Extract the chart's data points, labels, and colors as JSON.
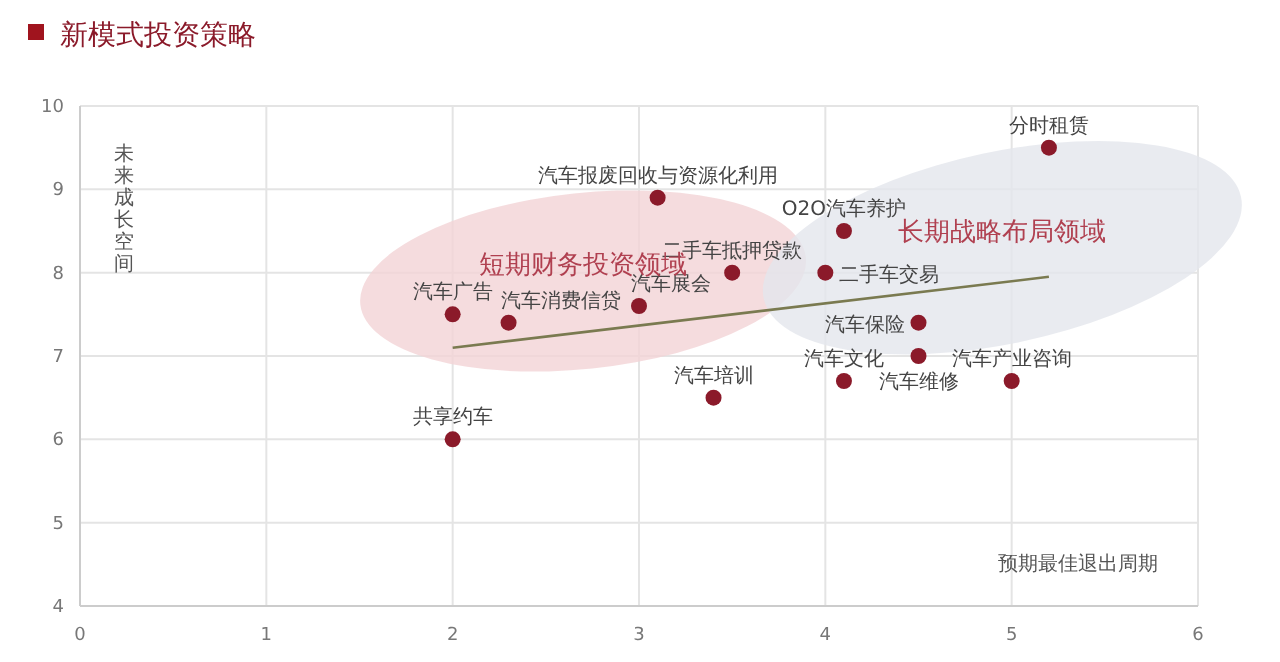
{
  "chart_data": {
    "type": "scatter",
    "title": "新模式投资策略",
    "xlabel": "预期最佳退出周期",
    "ylabel": "未来成长空间",
    "xlim": [
      0,
      6
    ],
    "ylim": [
      4,
      10
    ],
    "xticks": [
      0,
      1,
      2,
      3,
      4,
      5,
      6
    ],
    "yticks": [
      4,
      5,
      6,
      7,
      8,
      9,
      10
    ],
    "grid": true,
    "series": [
      {
        "marker": "circle",
        "color": "#8b1a2a",
        "x": [
          5.2,
          3.1,
          3.5,
          4.1,
          4.0,
          2.0,
          2.3,
          3.0,
          4.5,
          4.5,
          4.1,
          5.0,
          3.4,
          2.0
        ],
        "values": [
          9.5,
          8.9,
          8.0,
          8.5,
          8.0,
          7.5,
          7.4,
          7.6,
          7.4,
          7.0,
          6.7,
          6.7,
          6.5,
          6.0
        ]
      },
      {
        "type": "line",
        "color": "#7a7a50",
        "x": [
          2.0,
          5.2
        ],
        "values": [
          7.1,
          7.95
        ]
      }
    ],
    "annotations": [
      {
        "text": "分时租赁",
        "x": 5.2,
        "y": 9.5
      },
      {
        "text": "汽车报废回收与资源化利用",
        "x": 3.1,
        "y": 8.9
      },
      {
        "text": "二手车抵押贷款",
        "x": 3.5,
        "y": 8.0
      },
      {
        "text": "O2O汽车养护",
        "x": 4.1,
        "y": 8.5
      },
      {
        "text": "二手车交易",
        "x": 4.0,
        "y": 8.0
      },
      {
        "text": "汽车广告",
        "x": 2.0,
        "y": 7.5
      },
      {
        "text": "汽车消费信贷",
        "x": 2.3,
        "y": 7.4
      },
      {
        "text": "汽车展会",
        "x": 3.0,
        "y": 7.6
      },
      {
        "text": "汽车保险",
        "x": 4.5,
        "y": 7.4
      },
      {
        "text": "汽车维修",
        "x": 4.5,
        "y": 7.0
      },
      {
        "text": "汽车文化",
        "x": 4.1,
        "y": 6.7
      },
      {
        "text": "汽车产业咨询",
        "x": 5.0,
        "y": 6.7
      },
      {
        "text": "汽车培训",
        "x": 3.4,
        "y": 6.5
      },
      {
        "text": "共享约车",
        "x": 2.0,
        "y": 6.0
      },
      "短期财务投资领域",
      "长期战略布局领域"
    ]
  }
}
